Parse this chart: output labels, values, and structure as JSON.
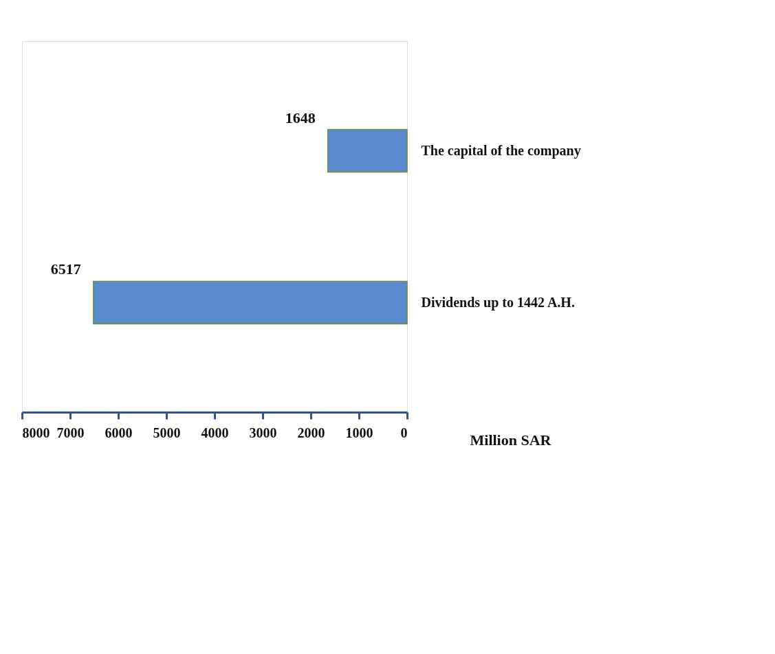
{
  "chart_data": {
    "type": "bar",
    "orientation": "horizontal",
    "categories": [
      "The capital of the company",
      "Dividends up to 1442 A.H."
    ],
    "values": [
      1648,
      6517
    ],
    "color": "#5a8ace",
    "xlabel": "Million SAR",
    "xlim": [
      8000,
      0
    ],
    "xticks": [
      0,
      1000,
      2000,
      3000,
      4000,
      5000,
      6000,
      7000,
      8000
    ],
    "data_labels": true
  }
}
